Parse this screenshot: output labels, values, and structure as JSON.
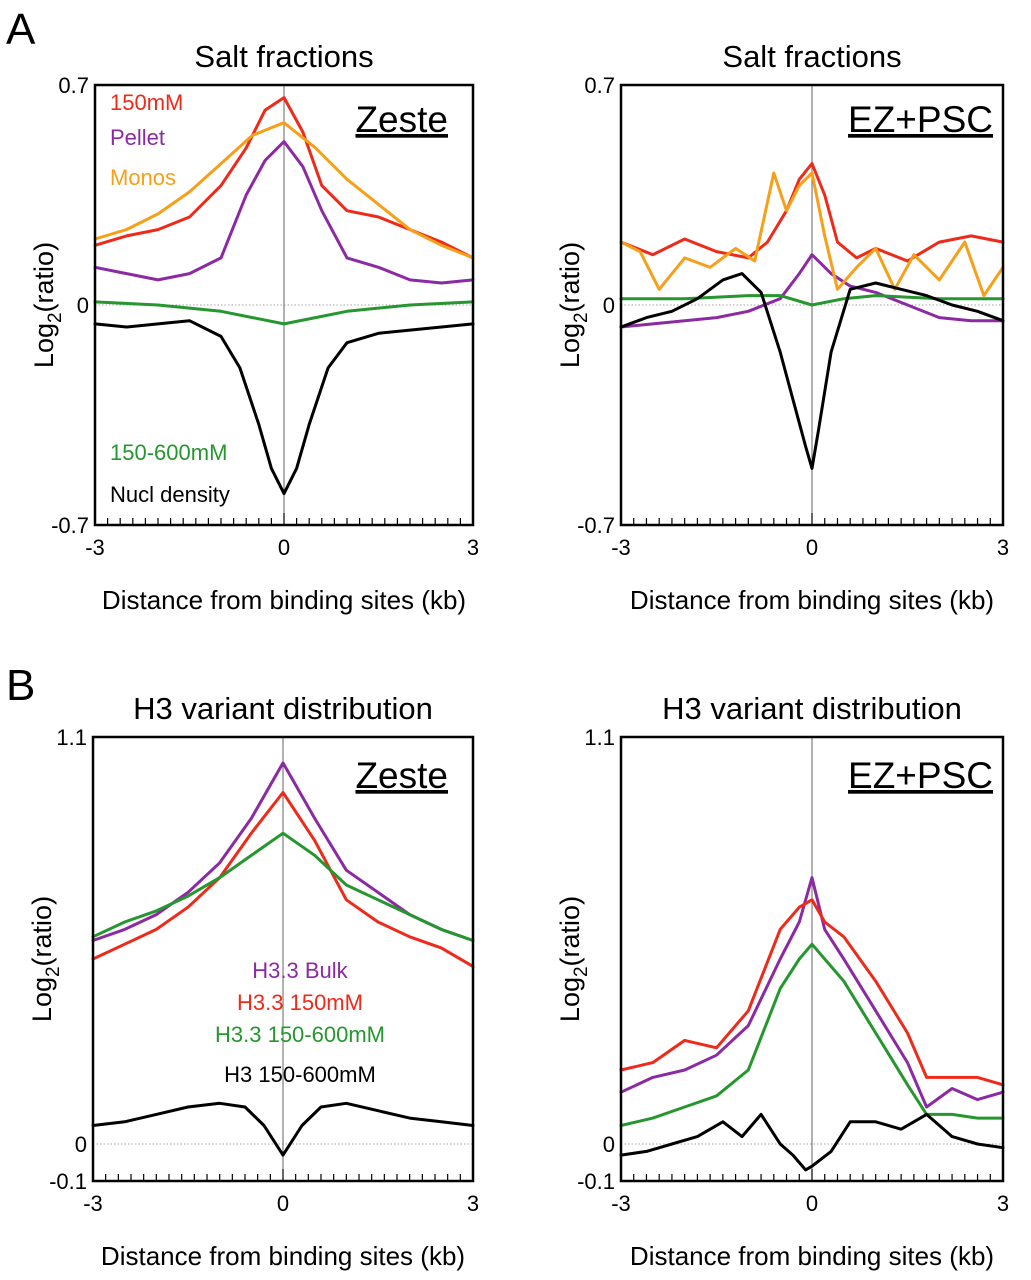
{
  "figure": {
    "panel_a_letter": "A",
    "panel_b_letter": "B"
  },
  "colors": {
    "red": "#ee2a1a",
    "purple": "#8b2aa3",
    "orange": "#f6a01a",
    "green": "#26962e",
    "black": "#000000"
  },
  "chart_data": [
    {
      "type": "line",
      "title": "Salt fractions",
      "tag": "Zeste",
      "xlabel": "Distance from binding sites (kb)",
      "ylabel_main": "Log",
      "ylabel_sub": "2",
      "ylabel_tail": "(ratio)",
      "xlim": [
        -3,
        3
      ],
      "ylim": [
        -0.7,
        0.7
      ],
      "x_ticks": [
        "-3",
        "0",
        "3"
      ],
      "y_ticks": [
        {
          "value": 0.7,
          "label": "0.7"
        },
        {
          "value": 0,
          "label": "0"
        },
        {
          "value": -0.7,
          "label": "-0.7"
        }
      ],
      "legend": [
        {
          "name": "150mM",
          "color": "#ee2a1a"
        },
        {
          "name": "Pellet",
          "color": "#8b2aa3"
        },
        {
          "name": "Monos",
          "color": "#f6a01a"
        },
        {
          "name": "150-600mM",
          "color": "#26962e"
        },
        {
          "name": "Nucl density",
          "color": "#000000"
        }
      ],
      "series": [
        {
          "name": "150mM",
          "color": "#ee2a1a",
          "x": [
            -3,
            -2.5,
            -2,
            -1.5,
            -1,
            -0.6,
            -0.3,
            0,
            0.3,
            0.6,
            1,
            1.5,
            2,
            2.5,
            3
          ],
          "y": [
            0.19,
            0.22,
            0.24,
            0.28,
            0.38,
            0.5,
            0.62,
            0.66,
            0.55,
            0.38,
            0.3,
            0.28,
            0.24,
            0.2,
            0.15
          ]
        },
        {
          "name": "Pellet",
          "color": "#8b2aa3",
          "x": [
            -3,
            -2.5,
            -2,
            -1.5,
            -1,
            -0.6,
            -0.3,
            0,
            0.3,
            0.6,
            1,
            1.5,
            2,
            2.5,
            3
          ],
          "y": [
            0.12,
            0.1,
            0.08,
            0.1,
            0.15,
            0.35,
            0.46,
            0.52,
            0.44,
            0.3,
            0.15,
            0.12,
            0.08,
            0.07,
            0.08
          ]
        },
        {
          "name": "Monos",
          "color": "#f6a01a",
          "x": [
            -3,
            -2.5,
            -2,
            -1.5,
            -1,
            -0.5,
            0,
            0.5,
            1,
            1.5,
            2,
            2.5,
            3
          ],
          "y": [
            0.21,
            0.24,
            0.29,
            0.36,
            0.45,
            0.54,
            0.58,
            0.5,
            0.4,
            0.32,
            0.24,
            0.19,
            0.15
          ]
        },
        {
          "name": "150-600mM",
          "color": "#26962e",
          "x": [
            -3,
            -2,
            -1,
            -0.5,
            0,
            0.5,
            1,
            2,
            3
          ],
          "y": [
            0.01,
            0.0,
            -0.02,
            -0.04,
            -0.06,
            -0.04,
            -0.02,
            0.0,
            0.01
          ]
        },
        {
          "name": "Nucl density",
          "color": "#000000",
          "x": [
            -3,
            -2.5,
            -2,
            -1.5,
            -1,
            -0.7,
            -0.4,
            -0.2,
            0,
            0.2,
            0.4,
            0.7,
            1,
            1.5,
            2,
            2.5,
            3
          ],
          "y": [
            -0.06,
            -0.07,
            -0.06,
            -0.05,
            -0.1,
            -0.2,
            -0.38,
            -0.52,
            -0.6,
            -0.52,
            -0.38,
            -0.2,
            -0.12,
            -0.09,
            -0.08,
            -0.07,
            -0.06
          ]
        }
      ]
    },
    {
      "type": "line",
      "title": "Salt fractions",
      "tag": "EZ+PSC",
      "xlabel": "Distance from binding sites (kb)",
      "ylabel_main": "Log",
      "ylabel_sub": "2",
      "ylabel_tail": "(ratio)",
      "xlim": [
        -3,
        3
      ],
      "ylim": [
        -0.7,
        0.7
      ],
      "x_ticks": [
        "-3",
        "0",
        "3"
      ],
      "y_ticks": [
        {
          "value": 0.7,
          "label": "0.7"
        },
        {
          "value": 0,
          "label": "0"
        },
        {
          "value": -0.7,
          "label": "-0.7"
        }
      ],
      "legend": [],
      "series": [
        {
          "name": "150mM",
          "color": "#ee2a1a",
          "x": [
            -3,
            -2.5,
            -2,
            -1.5,
            -1,
            -0.7,
            -0.4,
            -0.2,
            0,
            0.2,
            0.4,
            0.7,
            1,
            1.5,
            2,
            2.5,
            3
          ],
          "y": [
            0.2,
            0.16,
            0.21,
            0.17,
            0.15,
            0.2,
            0.3,
            0.4,
            0.45,
            0.35,
            0.2,
            0.15,
            0.18,
            0.14,
            0.2,
            0.22,
            0.2
          ]
        },
        {
          "name": "Pellet",
          "color": "#8b2aa3",
          "x": [
            -3,
            -2.5,
            -2,
            -1.5,
            -1,
            -0.5,
            -0.2,
            0,
            0.3,
            0.6,
            1,
            1.5,
            2,
            2.5,
            3
          ],
          "y": [
            -0.07,
            -0.06,
            -0.05,
            -0.04,
            -0.02,
            0.02,
            0.1,
            0.16,
            0.1,
            0.06,
            0.04,
            0.0,
            -0.04,
            -0.05,
            -0.05
          ]
        },
        {
          "name": "Monos",
          "color": "#f6a01a",
          "x": [
            -3,
            -2.7,
            -2.4,
            -2,
            -1.6,
            -1.2,
            -0.9,
            -0.6,
            -0.4,
            -0.2,
            0,
            0.2,
            0.4,
            0.7,
            1,
            1.3,
            1.6,
            2,
            2.4,
            2.7,
            3
          ],
          "y": [
            0.2,
            0.17,
            0.05,
            0.15,
            0.12,
            0.18,
            0.14,
            0.42,
            0.3,
            0.38,
            0.42,
            0.22,
            0.05,
            0.12,
            0.18,
            0.05,
            0.16,
            0.08,
            0.2,
            0.03,
            0.12
          ]
        },
        {
          "name": "150-600mM",
          "color": "#26962e",
          "x": [
            -3,
            -2,
            -1,
            -0.5,
            0,
            0.5,
            1,
            2,
            3
          ],
          "y": [
            0.02,
            0.02,
            0.03,
            0.03,
            0.0,
            0.02,
            0.03,
            0.02,
            0.02
          ]
        },
        {
          "name": "Nucl density",
          "color": "#000000",
          "x": [
            -3,
            -2.6,
            -2.2,
            -1.8,
            -1.4,
            -1.1,
            -0.8,
            -0.5,
            -0.3,
            -0.1,
            0,
            0.1,
            0.3,
            0.6,
            1,
            1.4,
            1.8,
            2.2,
            2.6,
            3
          ],
          "y": [
            -0.07,
            -0.04,
            -0.02,
            0.02,
            0.08,
            0.1,
            0.04,
            -0.15,
            -0.3,
            -0.45,
            -0.52,
            -0.4,
            -0.15,
            0.05,
            0.07,
            0.05,
            0.03,
            0.0,
            -0.02,
            -0.05
          ]
        }
      ]
    },
    {
      "type": "line",
      "title": "H3 variant distribution",
      "tag": "Zeste",
      "xlabel": "Distance from binding sites (kb)",
      "ylabel_main": "Log",
      "ylabel_sub": "2",
      "ylabel_tail": "(ratio)",
      "xlim": [
        -3,
        3
      ],
      "ylim": [
        -0.1,
        1.1
      ],
      "x_ticks": [
        "-3",
        "0",
        "3"
      ],
      "y_ticks": [
        {
          "value": 1.1,
          "label": "1.1"
        },
        {
          "value": 0,
          "label": "0"
        },
        {
          "value": -0.1,
          "label": "-0.1"
        }
      ],
      "legend": [
        {
          "name": "H3.3 Bulk",
          "color": "#8b2aa3"
        },
        {
          "name": "H3.3 150mM",
          "color": "#ee2a1a"
        },
        {
          "name": "H3.3 150-600mM",
          "color": "#26962e"
        },
        {
          "name": "H3 150-600mM",
          "color": "#000000"
        }
      ],
      "series": [
        {
          "name": "H3.3 Bulk",
          "color": "#8b2aa3",
          "x": [
            -3,
            -2.5,
            -2,
            -1.5,
            -1,
            -0.5,
            0,
            0.5,
            1,
            1.5,
            2,
            2.5,
            3
          ],
          "y": [
            0.55,
            0.58,
            0.62,
            0.68,
            0.76,
            0.88,
            1.03,
            0.88,
            0.74,
            0.68,
            0.62,
            0.58,
            0.55
          ]
        },
        {
          "name": "H3.3 150mM",
          "color": "#ee2a1a",
          "x": [
            -3,
            -2.5,
            -2,
            -1.5,
            -1,
            -0.5,
            0,
            0.5,
            1,
            1.5,
            2,
            2.5,
            3
          ],
          "y": [
            0.5,
            0.54,
            0.58,
            0.64,
            0.72,
            0.84,
            0.95,
            0.82,
            0.66,
            0.6,
            0.56,
            0.53,
            0.48
          ]
        },
        {
          "name": "H3.3 150-600mM",
          "color": "#26962e",
          "x": [
            -3,
            -2.5,
            -2,
            -1.5,
            -1,
            -0.5,
            0,
            0.5,
            1,
            1.5,
            2,
            2.5,
            3
          ],
          "y": [
            0.56,
            0.6,
            0.63,
            0.67,
            0.72,
            0.78,
            0.84,
            0.78,
            0.7,
            0.66,
            0.62,
            0.58,
            0.55
          ]
        },
        {
          "name": "H3 150-600mM",
          "color": "#000000",
          "x": [
            -3,
            -2.5,
            -2,
            -1.5,
            -1,
            -0.6,
            -0.3,
            0,
            0.3,
            0.6,
            1,
            1.5,
            2,
            2.5,
            3
          ],
          "y": [
            0.05,
            0.06,
            0.08,
            0.1,
            0.11,
            0.1,
            0.05,
            -0.03,
            0.05,
            0.1,
            0.11,
            0.09,
            0.07,
            0.06,
            0.05
          ]
        }
      ]
    },
    {
      "type": "line",
      "title": "H3 variant distribution",
      "tag": "EZ+PSC",
      "xlabel": "Distance from binding sites (kb)",
      "ylabel_main": "Log",
      "ylabel_sub": "2",
      "ylabel_tail": "(ratio)",
      "xlim": [
        -3,
        3
      ],
      "ylim": [
        -0.1,
        1.1
      ],
      "x_ticks": [
        "-3",
        "0",
        "3"
      ],
      "y_ticks": [
        {
          "value": 1.1,
          "label": "1.1"
        },
        {
          "value": 0,
          "label": "0"
        },
        {
          "value": -0.1,
          "label": "-0.1"
        }
      ],
      "legend": [],
      "series": [
        {
          "name": "H3.3 Bulk",
          "color": "#8b2aa3",
          "x": [
            -3,
            -2.5,
            -2,
            -1.5,
            -1,
            -0.5,
            -0.2,
            0,
            0.2,
            0.5,
            1,
            1.5,
            1.8,
            2.2,
            2.6,
            3
          ],
          "y": [
            0.14,
            0.18,
            0.2,
            0.24,
            0.32,
            0.5,
            0.6,
            0.72,
            0.58,
            0.5,
            0.36,
            0.22,
            0.1,
            0.15,
            0.12,
            0.14
          ]
        },
        {
          "name": "H3.3 150mM",
          "color": "#ee2a1a",
          "x": [
            -3,
            -2.5,
            -2,
            -1.5,
            -1,
            -0.5,
            -0.2,
            0,
            0.2,
            0.5,
            1,
            1.5,
            1.8,
            2.2,
            2.6,
            3
          ],
          "y": [
            0.2,
            0.22,
            0.28,
            0.26,
            0.36,
            0.58,
            0.64,
            0.66,
            0.6,
            0.56,
            0.44,
            0.3,
            0.18,
            0.18,
            0.18,
            0.16
          ]
        },
        {
          "name": "H3.3 150-600mM",
          "color": "#26962e",
          "x": [
            -3,
            -2.5,
            -2,
            -1.5,
            -1,
            -0.5,
            -0.2,
            0,
            0.2,
            0.5,
            1,
            1.5,
            1.8,
            2.2,
            2.6,
            3
          ],
          "y": [
            0.05,
            0.07,
            0.1,
            0.13,
            0.2,
            0.42,
            0.5,
            0.54,
            0.5,
            0.44,
            0.3,
            0.16,
            0.08,
            0.08,
            0.07,
            0.07
          ]
        },
        {
          "name": "H3 150-600mM",
          "color": "#000000",
          "x": [
            -3,
            -2.6,
            -2.2,
            -1.8,
            -1.4,
            -1.1,
            -0.8,
            -0.5,
            -0.3,
            -0.1,
            0,
            0.3,
            0.6,
            1,
            1.4,
            1.8,
            2.2,
            2.6,
            3
          ],
          "y": [
            -0.03,
            -0.02,
            0.0,
            0.02,
            0.06,
            0.02,
            0.08,
            0.0,
            -0.03,
            -0.07,
            -0.06,
            -0.02,
            0.06,
            0.06,
            0.04,
            0.08,
            0.02,
            0.0,
            -0.01
          ]
        }
      ]
    }
  ]
}
